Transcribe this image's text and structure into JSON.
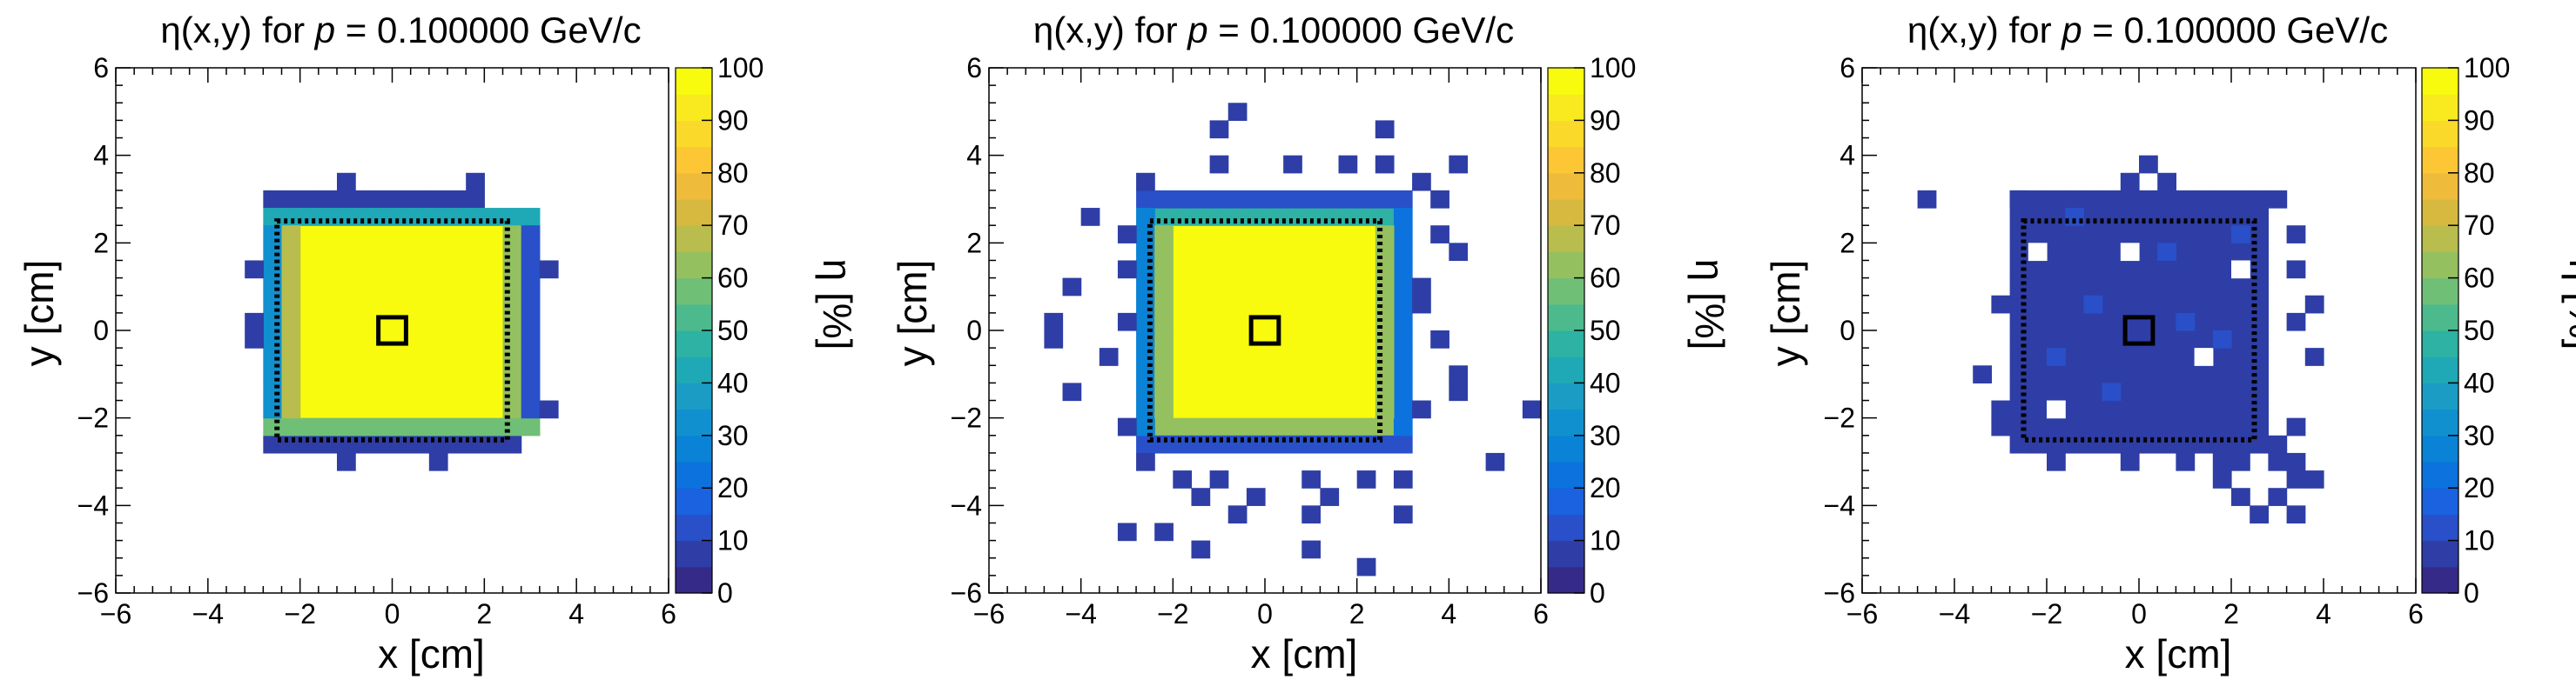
{
  "chart_data": [
    {
      "type": "heatmap",
      "title": "η(x,y) for p = 0.100000 GeV/c",
      "title_parts": {
        "prefix": "η(x,y) for ",
        "var": "p",
        "suffix": " = 0.100000 GeV/c"
      },
      "xlabel": "x [cm]",
      "ylabel": "y [cm]",
      "zlabel": "η [%]",
      "xlim": [
        -6,
        6
      ],
      "ylim": [
        -6,
        6
      ],
      "zlim": [
        0,
        100
      ],
      "x_ticks": [
        -6,
        -4,
        -2,
        0,
        2,
        4,
        6
      ],
      "y_ticks": [
        -6,
        -4,
        -2,
        0,
        2,
        4,
        6
      ],
      "z_ticks": [
        0,
        10,
        20,
        30,
        40,
        50,
        60,
        70,
        80,
        90,
        100
      ],
      "bin_width_cm": 0.4,
      "fill_region": {
        "x": [
          -2.4,
          2.4
        ],
        "y": [
          -2.4,
          2.4
        ],
        "value": 99
      },
      "rows": [
        {
          "y": 2.8,
          "x_from": -2.8,
          "x_to": 1.6,
          "value": 6
        },
        {
          "y": 2.4,
          "x_from": -2.8,
          "x_to": 2.8,
          "value": 42
        },
        {
          "y": -2.8,
          "x_from": -2.8,
          "x_to": 2.4,
          "value": 6
        },
        {
          "y": -2.4,
          "x_from": -2.8,
          "x_to": 2.8,
          "value": 58
        }
      ],
      "cols": [
        {
          "x": -2.8,
          "y_from": -2.0,
          "y_to": 2.0,
          "value": 30
        },
        {
          "x": -2.4,
          "y_from": -2.0,
          "y_to": 2.0,
          "value": 68
        },
        {
          "x": 2.4,
          "y_from": -2.0,
          "y_to": 2.0,
          "value": 64
        },
        {
          "x": 2.8,
          "y_from": -2.0,
          "y_to": 2.0,
          "value": 14
        }
      ],
      "bins": [
        {
          "x": -3.2,
          "y": -0.4,
          "z": 8
        },
        {
          "x": -3.2,
          "y": 0.0,
          "z": 8
        },
        {
          "x": -3.2,
          "y": 1.2,
          "z": 6
        },
        {
          "x": 3.2,
          "y": 1.2,
          "z": 6
        },
        {
          "x": 3.2,
          "y": -2.0,
          "z": 6
        },
        {
          "x": 1.6,
          "y": 3.2,
          "z": 6
        },
        {
          "x": -1.2,
          "y": 3.2,
          "z": 6
        },
        {
          "x": -1.2,
          "y": -3.2,
          "z": 6
        },
        {
          "x": 0.8,
          "y": -3.2,
          "z": 6
        }
      ],
      "dotted_rect": {
        "x": [
          -2.5,
          2.5
        ],
        "y": [
          -2.5,
          2.5
        ]
      },
      "solid_rect": {
        "x": [
          -0.3,
          0.3
        ],
        "y": [
          -0.3,
          0.3
        ]
      }
    },
    {
      "type": "heatmap",
      "title": "η(x,y) for p = 0.100000 GeV/c",
      "title_parts": {
        "prefix": "η(x,y) for ",
        "var": "p",
        "suffix": " = 0.100000 GeV/c"
      },
      "xlabel": "x [cm]",
      "ylabel": "y [cm]",
      "zlabel": "η [%]",
      "xlim": [
        -6,
        6
      ],
      "ylim": [
        -6,
        6
      ],
      "zlim": [
        0,
        100
      ],
      "x_ticks": [
        -6,
        -4,
        -2,
        0,
        2,
        4,
        6
      ],
      "y_ticks": [
        -6,
        -4,
        -2,
        0,
        2,
        4,
        6
      ],
      "z_ticks": [
        0,
        10,
        20,
        30,
        40,
        50,
        60,
        70,
        80,
        90,
        100
      ],
      "bin_width_cm": 0.4,
      "fill_region": {
        "x": [
          -2.4,
          2.4
        ],
        "y": [
          -2.4,
          2.4
        ],
        "value": 99
      },
      "rows": [
        {
          "y": 2.4,
          "x_from": -2.4,
          "x_to": 2.4,
          "value": 45
        },
        {
          "y": -2.4,
          "x_from": -2.4,
          "x_to": 2.4,
          "value": 60
        },
        {
          "y": 2.8,
          "x_from": -2.8,
          "x_to": 2.8,
          "value": 10
        },
        {
          "y": -2.8,
          "x_from": -2.8,
          "x_to": 2.8,
          "value": 12
        }
      ],
      "cols": [
        {
          "x": -2.8,
          "y_from": -2.4,
          "y_to": 2.4,
          "value": 25
        },
        {
          "x": 2.8,
          "y_from": -2.4,
          "y_to": 2.4,
          "value": 20
        },
        {
          "x": -2.4,
          "y_from": -2.0,
          "y_to": 2.0,
          "value": 62
        },
        {
          "x": 2.4,
          "y_from": -2.0,
          "y_to": 2.0,
          "value": 60
        }
      ],
      "bins": [
        {
          "x": -1.2,
          "y": 4.4,
          "z": 6
        },
        {
          "x": -0.8,
          "y": 4.8,
          "z": 6
        },
        {
          "x": -1.2,
          "y": 3.6,
          "z": 6
        },
        {
          "x": 0.4,
          "y": 3.6,
          "z": 6
        },
        {
          "x": 1.6,
          "y": 3.6,
          "z": 6
        },
        {
          "x": 2.4,
          "y": 3.6,
          "z": 6
        },
        {
          "x": 2.4,
          "y": 4.4,
          "z": 6
        },
        {
          "x": 4.0,
          "y": 3.6,
          "z": 6
        },
        {
          "x": -2.8,
          "y": 3.2,
          "z": 6
        },
        {
          "x": 3.2,
          "y": 3.2,
          "z": 6
        },
        {
          "x": 3.6,
          "y": 2.8,
          "z": 6
        },
        {
          "x": -4.0,
          "y": 2.4,
          "z": 6
        },
        {
          "x": -3.2,
          "y": 2.0,
          "z": 6
        },
        {
          "x": 3.6,
          "y": 2.0,
          "z": 6
        },
        {
          "x": 4.0,
          "y": 1.6,
          "z": 6
        },
        {
          "x": -3.2,
          "y": 1.2,
          "z": 6
        },
        {
          "x": -4.4,
          "y": 0.8,
          "z": 6
        },
        {
          "x": 3.2,
          "y": 0.8,
          "z": 6
        },
        {
          "x": 3.2,
          "y": 0.4,
          "z": 6
        },
        {
          "x": -3.2,
          "y": 0.0,
          "z": 6
        },
        {
          "x": 3.6,
          "y": -0.4,
          "z": 6
        },
        {
          "x": -4.8,
          "y": -0.4,
          "z": 6
        },
        {
          "x": -4.8,
          "y": 0.0,
          "z": 6
        },
        {
          "x": -3.6,
          "y": -0.8,
          "z": 6
        },
        {
          "x": 4.0,
          "y": -1.2,
          "z": 6
        },
        {
          "x": -4.4,
          "y": -1.6,
          "z": 6
        },
        {
          "x": 4.0,
          "y": -1.6,
          "z": 6
        },
        {
          "x": 3.2,
          "y": -2.0,
          "z": 6
        },
        {
          "x": 5.6,
          "y": -2.0,
          "z": 6
        },
        {
          "x": -3.2,
          "y": -2.4,
          "z": 6
        },
        {
          "x": -2.8,
          "y": -3.2,
          "z": 6
        },
        {
          "x": -2.0,
          "y": -3.6,
          "z": 6
        },
        {
          "x": -1.2,
          "y": -3.6,
          "z": 6
        },
        {
          "x": 0.8,
          "y": -3.6,
          "z": 6
        },
        {
          "x": 2.0,
          "y": -3.6,
          "z": 6
        },
        {
          "x": 2.8,
          "y": -3.6,
          "z": 6
        },
        {
          "x": 4.8,
          "y": -3.2,
          "z": 6
        },
        {
          "x": -1.6,
          "y": -4.0,
          "z": 6
        },
        {
          "x": -0.4,
          "y": -4.0,
          "z": 6
        },
        {
          "x": 1.2,
          "y": -4.0,
          "z": 6
        },
        {
          "x": -0.8,
          "y": -4.4,
          "z": 6
        },
        {
          "x": 0.8,
          "y": -4.4,
          "z": 6
        },
        {
          "x": 2.8,
          "y": -4.4,
          "z": 6
        },
        {
          "x": -3.2,
          "y": -4.8,
          "z": 6
        },
        {
          "x": -2.4,
          "y": -4.8,
          "z": 6
        },
        {
          "x": -1.6,
          "y": -5.2,
          "z": 6
        },
        {
          "x": 0.8,
          "y": -5.2,
          "z": 6
        },
        {
          "x": 2.0,
          "y": -5.6,
          "z": 6
        }
      ],
      "dotted_rect": {
        "x": [
          -2.5,
          2.5
        ],
        "y": [
          -2.5,
          2.5
        ]
      },
      "solid_rect": {
        "x": [
          -0.3,
          0.3
        ],
        "y": [
          -0.3,
          0.3
        ]
      }
    },
    {
      "type": "heatmap",
      "title": "η(x,y) for p = 0.100000 GeV/c",
      "title_parts": {
        "prefix": "η(x,y) for ",
        "var": "p",
        "suffix": " = 0.100000 GeV/c"
      },
      "xlabel": "x [cm]",
      "ylabel": "y [cm]",
      "zlabel": "η [%]",
      "xlim": [
        -6,
        6
      ],
      "ylim": [
        -6,
        6
      ],
      "zlim": [
        0,
        100
      ],
      "x_ticks": [
        -6,
        -4,
        -2,
        0,
        2,
        4,
        6
      ],
      "y_ticks": [
        -6,
        -4,
        -2,
        0,
        2,
        4,
        6
      ],
      "z_ticks": [
        0,
        10,
        20,
        30,
        40,
        50,
        60,
        70,
        80,
        90,
        100
      ],
      "bin_width_cm": 0.4,
      "fill_region": {
        "x": [
          -2.8,
          2.8
        ],
        "y": [
          -2.8,
          2.8
        ],
        "value": 6
      },
      "rows": [
        {
          "y": 2.8,
          "x_from": -2.8,
          "x_to": 2.8,
          "value": 5
        },
        {
          "y": -2.8,
          "x_from": -2.4,
          "x_to": 2.8,
          "value": 5
        }
      ],
      "cols": [],
      "bins": [
        {
          "x": -4.8,
          "y": 2.8,
          "z": 6
        },
        {
          "x": -2.8,
          "y": 2.8,
          "z": 6
        },
        {
          "x": 0.0,
          "y": 3.6,
          "z": 6
        },
        {
          "x": -0.4,
          "y": 3.2,
          "z": 6
        },
        {
          "x": 0.4,
          "y": 3.2,
          "z": 6
        },
        {
          "x": -0.4,
          "y": 1.6,
          "z": 1
        },
        {
          "x": -2.4,
          "y": 1.6,
          "z": 1
        },
        {
          "x": 2.0,
          "y": 1.2,
          "z": 1
        },
        {
          "x": 1.2,
          "y": -0.8,
          "z": 1
        },
        {
          "x": -2.0,
          "y": -2.0,
          "z": 1
        },
        {
          "x": 0.4,
          "y": 1.6,
          "z": 12
        },
        {
          "x": -1.2,
          "y": 0.4,
          "z": 12
        },
        {
          "x": 1.6,
          "y": -0.4,
          "z": 12
        },
        {
          "x": -0.8,
          "y": -1.6,
          "z": 12
        },
        {
          "x": 2.0,
          "y": 2.0,
          "z": 12
        },
        {
          "x": -1.6,
          "y": 2.4,
          "z": 12
        },
        {
          "x": 0.8,
          "y": 0.0,
          "z": 12
        },
        {
          "x": -2.0,
          "y": -0.8,
          "z": 12
        },
        {
          "x": 3.2,
          "y": 2.0,
          "z": 6
        },
        {
          "x": 3.2,
          "y": 1.2,
          "z": 6
        },
        {
          "x": 3.6,
          "y": 0.4,
          "z": 6
        },
        {
          "x": 3.2,
          "y": 0.0,
          "z": 6
        },
        {
          "x": 3.6,
          "y": -0.8,
          "z": 6
        },
        {
          "x": -3.2,
          "y": 0.4,
          "z": 6
        },
        {
          "x": -3.6,
          "y": -1.2,
          "z": 6
        },
        {
          "x": -3.2,
          "y": -2.0,
          "z": 6
        },
        {
          "x": -3.2,
          "y": -2.4,
          "z": 6
        },
        {
          "x": 3.2,
          "y": -2.4,
          "z": 6
        },
        {
          "x": -2.0,
          "y": -3.2,
          "z": 6
        },
        {
          "x": -0.4,
          "y": -3.2,
          "z": 6
        },
        {
          "x": 0.8,
          "y": -3.2,
          "z": 6
        },
        {
          "x": 1.6,
          "y": -3.2,
          "z": 6
        },
        {
          "x": 2.0,
          "y": -3.2,
          "z": 6
        },
        {
          "x": 2.8,
          "y": -3.2,
          "z": 6
        },
        {
          "x": 1.6,
          "y": -3.6,
          "z": 6
        },
        {
          "x": 2.0,
          "y": -4.0,
          "z": 6
        },
        {
          "x": 3.2,
          "y": -3.6,
          "z": 6
        },
        {
          "x": 2.4,
          "y": -4.4,
          "z": 6
        },
        {
          "x": 3.2,
          "y": -4.4,
          "z": 6
        },
        {
          "x": 3.6,
          "y": -3.6,
          "z": 6
        },
        {
          "x": 2.8,
          "y": -4.0,
          "z": 6
        },
        {
          "x": 3.2,
          "y": -3.2,
          "z": 6
        }
      ],
      "dotted_rect": {
        "x": [
          -2.5,
          2.5
        ],
        "y": [
          -2.5,
          2.5
        ]
      },
      "solid_rect": {
        "x": [
          -0.3,
          0.3
        ],
        "y": [
          -0.3,
          0.3
        ]
      }
    }
  ]
}
